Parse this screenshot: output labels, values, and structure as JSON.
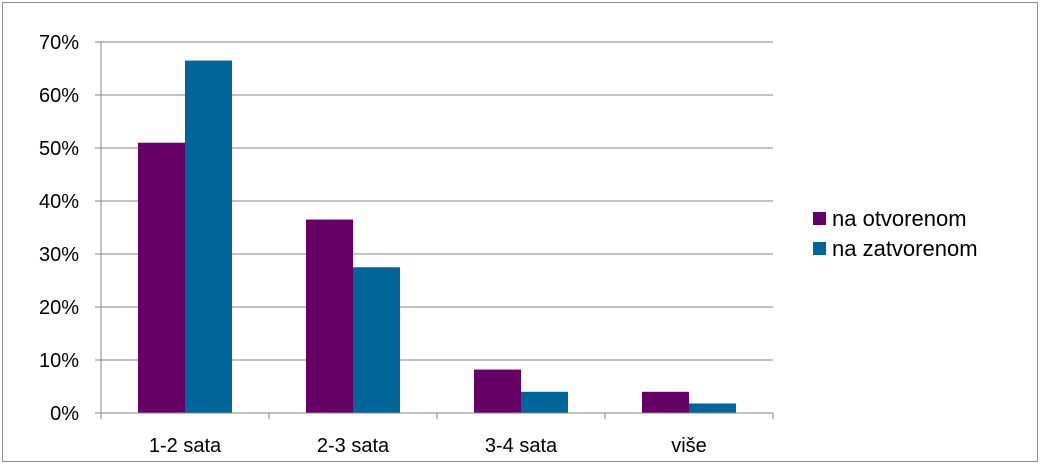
{
  "chart_data": {
    "type": "bar",
    "categories": [
      "1-2 sata",
      "2-3 sata",
      "3-4 sata",
      "više"
    ],
    "series": [
      {
        "name": "na otvorenom",
        "color": "#660066",
        "values": [
          51,
          36.5,
          8.2,
          4
        ]
      },
      {
        "name": "na zatvorenom",
        "color": "#006699",
        "values": [
          66.5,
          27.5,
          4,
          1.8
        ]
      }
    ],
    "yticks": [
      "0%",
      "10%",
      "20%",
      "30%",
      "40%",
      "50%",
      "60%",
      "70%"
    ],
    "ylim": [
      0,
      70
    ],
    "grid": true,
    "legend_position": "right",
    "title": "",
    "xlabel": "",
    "ylabel": ""
  }
}
